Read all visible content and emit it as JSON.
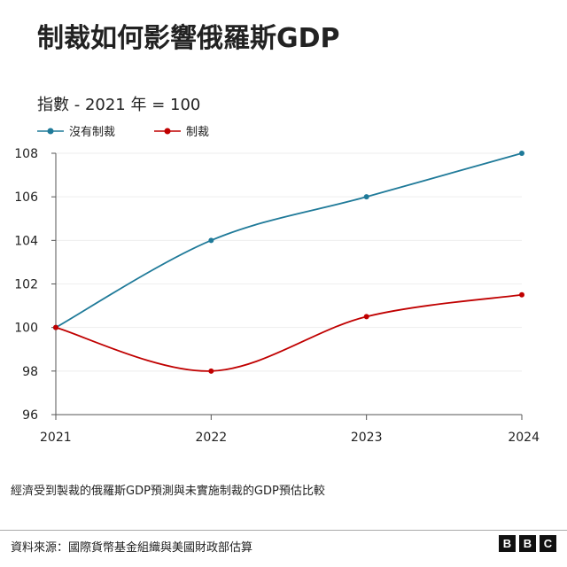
{
  "chart_data": {
    "type": "line",
    "title": "制裁如何影響俄羅斯GDP",
    "ylabel": "指數 - 2021 年 = 100",
    "categories": [
      "2021",
      "2022",
      "2023",
      "2024"
    ],
    "ylim": [
      96,
      108
    ],
    "yticks": [
      "96",
      "98",
      "100",
      "102",
      "104",
      "106",
      "108"
    ],
    "grid": true,
    "legend_position": "top-left",
    "series": [
      {
        "name": "沒有制裁",
        "values": [
          100,
          104,
          106,
          108
        ],
        "color": "#1f7a99"
      },
      {
        "name": "制裁",
        "values": [
          100,
          98,
          100.5,
          101.5
        ],
        "color": "#c00000"
      }
    ]
  },
  "note": "經濟受到製裁的俄羅斯GDP預測與未實施制裁的GDP預估比較",
  "source": "資料來源：國際貨幣基金組織與美國財政部估算",
  "logo": [
    "B",
    "B",
    "C"
  ]
}
